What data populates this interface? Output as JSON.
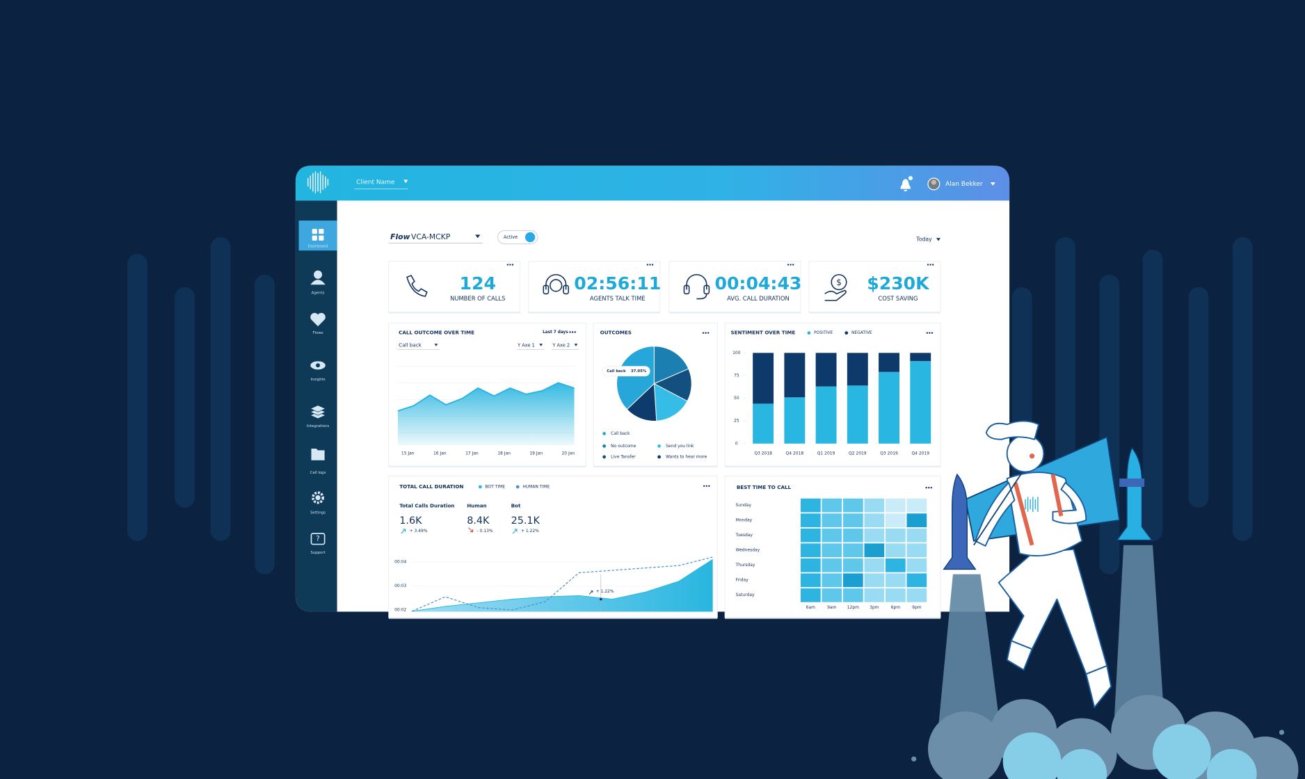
{
  "header": {
    "client_name": "Client Name",
    "user_name": "Alan Bekker"
  },
  "sidebar": {
    "items": [
      "Dashboard",
      "Agents",
      "Flows",
      "Insights",
      "Integrations",
      "Call logs",
      "Settings",
      "Support"
    ]
  },
  "toolbar": {
    "flow_label": "Flow",
    "flow_name": "VCA-MCKP",
    "status": "Active",
    "period": "Today"
  },
  "kpis": [
    {
      "value": "124",
      "label": "NUMBER OF CALLS"
    },
    {
      "value": "02:56:11",
      "label": "AGENTS TALK TIME"
    },
    {
      "value": "00:04:43",
      "label": "AVG. CALL DURATION"
    },
    {
      "value": "$230K",
      "label": "COST SAVING"
    }
  ],
  "call_outcome": {
    "type": "area",
    "title": "CALL OUTCOME OVER TIME",
    "range": "Last 7 days",
    "filter": "Call back",
    "axis_1": "Y Axe 1",
    "axis_2": "Y Axe 2",
    "categories": [
      "15 Jan",
      null,
      "16 Jan",
      null,
      "17 Jan",
      null,
      "18 Jan",
      null,
      "19 Jan",
      null,
      "20 Jan",
      null
    ],
    "values": [
      39,
      45,
      57,
      46,
      53,
      65,
      56,
      65,
      58,
      62,
      71,
      65
    ],
    "color": "#2bb3e3"
  },
  "outcomes": {
    "type": "pie",
    "title": "OUTCOMES",
    "categories": [
      "Call back",
      "No outcome",
      "Live Tansfer",
      "Send you link",
      "Wants to hear more"
    ],
    "values": [
      37.05,
      18.5,
      14.2,
      16.3,
      13.95
    ],
    "value_labels": [
      "37.05%",
      null,
      null,
      null,
      null
    ],
    "colors": [
      "#27a6d9",
      "#1b7fb2",
      "#13507f",
      "#35bde8",
      "#0d3b6b"
    ]
  },
  "sentiment": {
    "type": "bar",
    "stacked": true,
    "title": "SENTIMENT OVER TIME",
    "categories": [
      "Q3 2018",
      "Q4 2018",
      "Q1 2019",
      "Q2 2019",
      "Q3 2019",
      "Q4 2019"
    ],
    "series": [
      {
        "name": "POSITIVE",
        "color": "#29b6e0",
        "values": [
          44,
          51,
          63,
          64,
          79,
          91
        ]
      },
      {
        "name": "NEGATIVE",
        "color": "#0d3a6a",
        "values": [
          56,
          49,
          37,
          36,
          21,
          9
        ]
      }
    ],
    "ylim": [
      0,
      100
    ],
    "yticks": [
      0,
      25,
      50,
      75,
      100
    ]
  },
  "call_duration": {
    "type": "line",
    "title": "TOTAL CALL DURATION",
    "stats": [
      {
        "label": "Total Calls Duration",
        "value": "1.6K",
        "change": "+ 3.49%",
        "trend": "up"
      },
      {
        "label": "Human",
        "value": "8.4K",
        "change": "- 0.13%",
        "trend": "down"
      },
      {
        "label": "Bot",
        "value": "25.1K",
        "change": "+ 1.22%",
        "trend": "up"
      }
    ],
    "series": [
      {
        "name": "BOT TIME",
        "color": "#29b6e0",
        "values": [
          1.95,
          2.15,
          2.3,
          2.45,
          2.55,
          2.6,
          2.45,
          2.75,
          3.2,
          4.1
        ]
      },
      {
        "name": "HUMAN TIME",
        "color": "#4a8fc9",
        "dashed": true,
        "values": [
          1.95,
          2.55,
          2.1,
          2.0,
          2.35,
          3.55,
          3.65,
          3.75,
          3.85,
          4.2
        ]
      }
    ],
    "ylim": [
      2,
      4.25
    ],
    "yticks": [
      {
        "value": 4,
        "label": "00:04"
      },
      {
        "value": 3,
        "label": "00:03"
      },
      {
        "value": 2,
        "label": "00:02"
      }
    ],
    "annotation": "+ 1.22%"
  },
  "best_time": {
    "type": "heatmap",
    "title": "BEST TIME TO CALL",
    "rows": [
      "Sunday",
      "Monday",
      "Tuesday",
      "Wednesday",
      "Thursday",
      "Friday",
      "Saturday"
    ],
    "columns": [
      "6am",
      "9am",
      "12pm",
      "3pm",
      "6pm",
      "9pm"
    ],
    "values": [
      [
        4,
        3,
        3,
        2,
        1,
        1
      ],
      [
        4,
        3,
        3,
        2,
        1,
        5
      ],
      [
        4,
        3,
        3,
        2,
        2,
        2
      ],
      [
        4,
        3,
        3,
        5,
        2,
        2
      ],
      [
        4,
        3,
        3,
        2,
        4,
        2
      ],
      [
        4,
        3,
        5,
        2,
        2,
        4
      ],
      [
        4,
        3,
        3,
        2,
        2,
        2
      ]
    ],
    "colors": [
      "#c9ecf8",
      "#98dbf2",
      "#5fc8ea",
      "#2db4e0",
      "#1a9fd0"
    ]
  }
}
